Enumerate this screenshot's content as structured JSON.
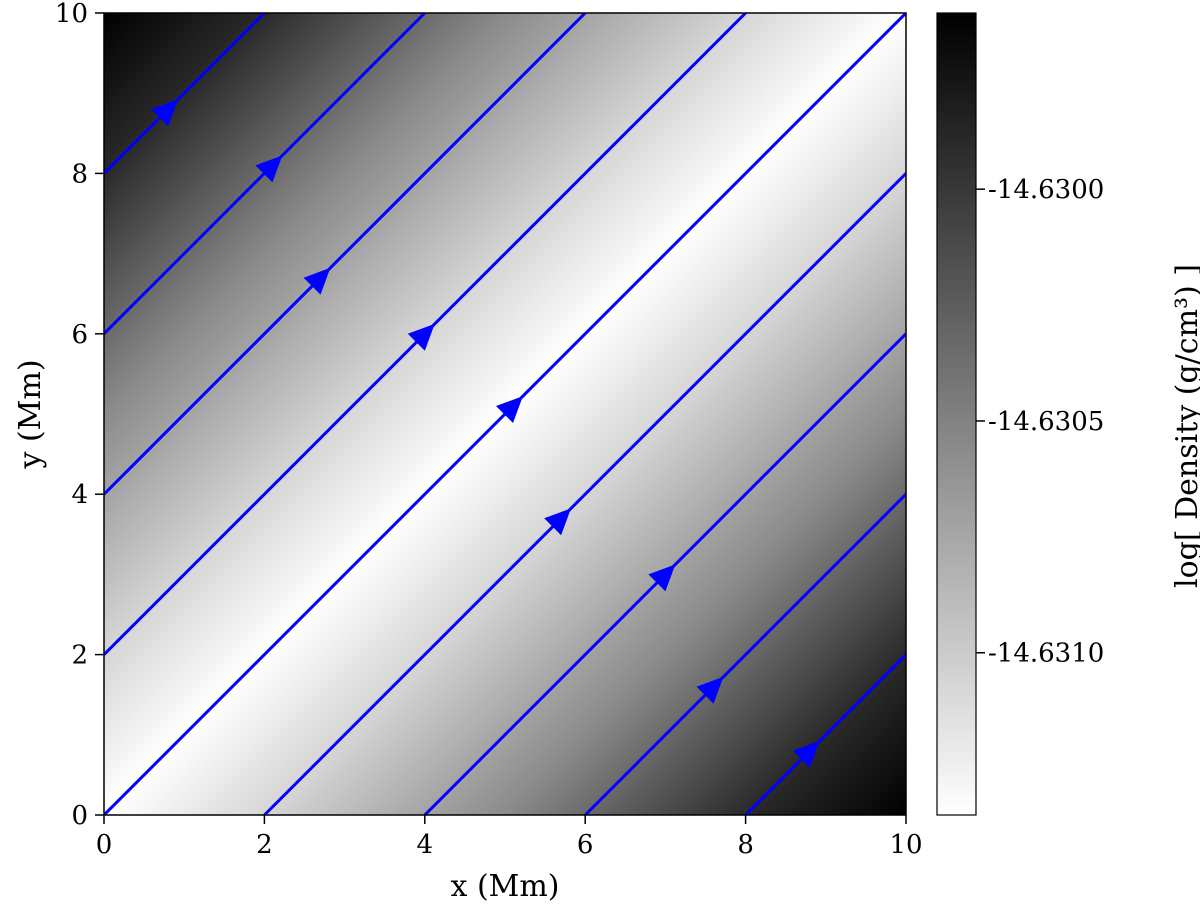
{
  "chart_data": {
    "type": "heatmap",
    "xlabel": "x (Mm)",
    "ylabel": "y (Mm)",
    "xlim": [
      0,
      10
    ],
    "ylim": [
      0,
      10
    ],
    "xticks": [
      "0",
      "2",
      "4",
      "6",
      "8",
      "10"
    ],
    "yticks": [
      "0",
      "2",
      "4",
      "6",
      "8",
      "10"
    ],
    "colormap": "gray",
    "colorbar": {
      "label": "log[ Density (g/cm³) ]",
      "ticks": [
        "-14.6300",
        "-14.6305",
        "-14.6310"
      ],
      "tick_values": [
        -14.63,
        -14.6305,
        -14.631
      ],
      "range": [
        -14.63135,
        -14.62962
      ],
      "low_color": "#ffffff",
      "high_color": "#000000"
    },
    "field": {
      "description_values": "density minimum (white) along diagonal y = x, maximum (black) in corners (0,10)/(10,0) and along x - y = ±10",
      "ridge_direction": [
        1,
        1
      ]
    },
    "field_lines": {
      "color": "#0000ff",
      "direction": "up-right",
      "lines": [
        {
          "start": [
            0,
            8
          ],
          "end": [
            2,
            10
          ],
          "arrow": [
            0.8,
            8.8
          ]
        },
        {
          "start": [
            0,
            6
          ],
          "end": [
            4,
            10
          ],
          "arrow": [
            2.1,
            8.1
          ]
        },
        {
          "start": [
            0,
            4
          ],
          "end": [
            6,
            10
          ],
          "arrow": [
            2.7,
            6.7
          ]
        },
        {
          "start": [
            0,
            2
          ],
          "end": [
            8,
            10
          ],
          "arrow": [
            4.0,
            6.0
          ]
        },
        {
          "start": [
            0,
            0
          ],
          "end": [
            10,
            10
          ],
          "arrow": [
            5.1,
            5.1
          ]
        },
        {
          "start": [
            2,
            0
          ],
          "end": [
            10,
            8
          ],
          "arrow": [
            5.7,
            3.7
          ]
        },
        {
          "start": [
            4,
            0
          ],
          "end": [
            10,
            6
          ],
          "arrow": [
            7.0,
            3.0
          ]
        },
        {
          "start": [
            6,
            0
          ],
          "end": [
            10,
            4
          ],
          "arrow": [
            7.6,
            1.6
          ]
        },
        {
          "start": [
            8,
            0
          ],
          "end": [
            10,
            2
          ],
          "arrow": [
            8.8,
            0.8
          ]
        }
      ]
    }
  }
}
